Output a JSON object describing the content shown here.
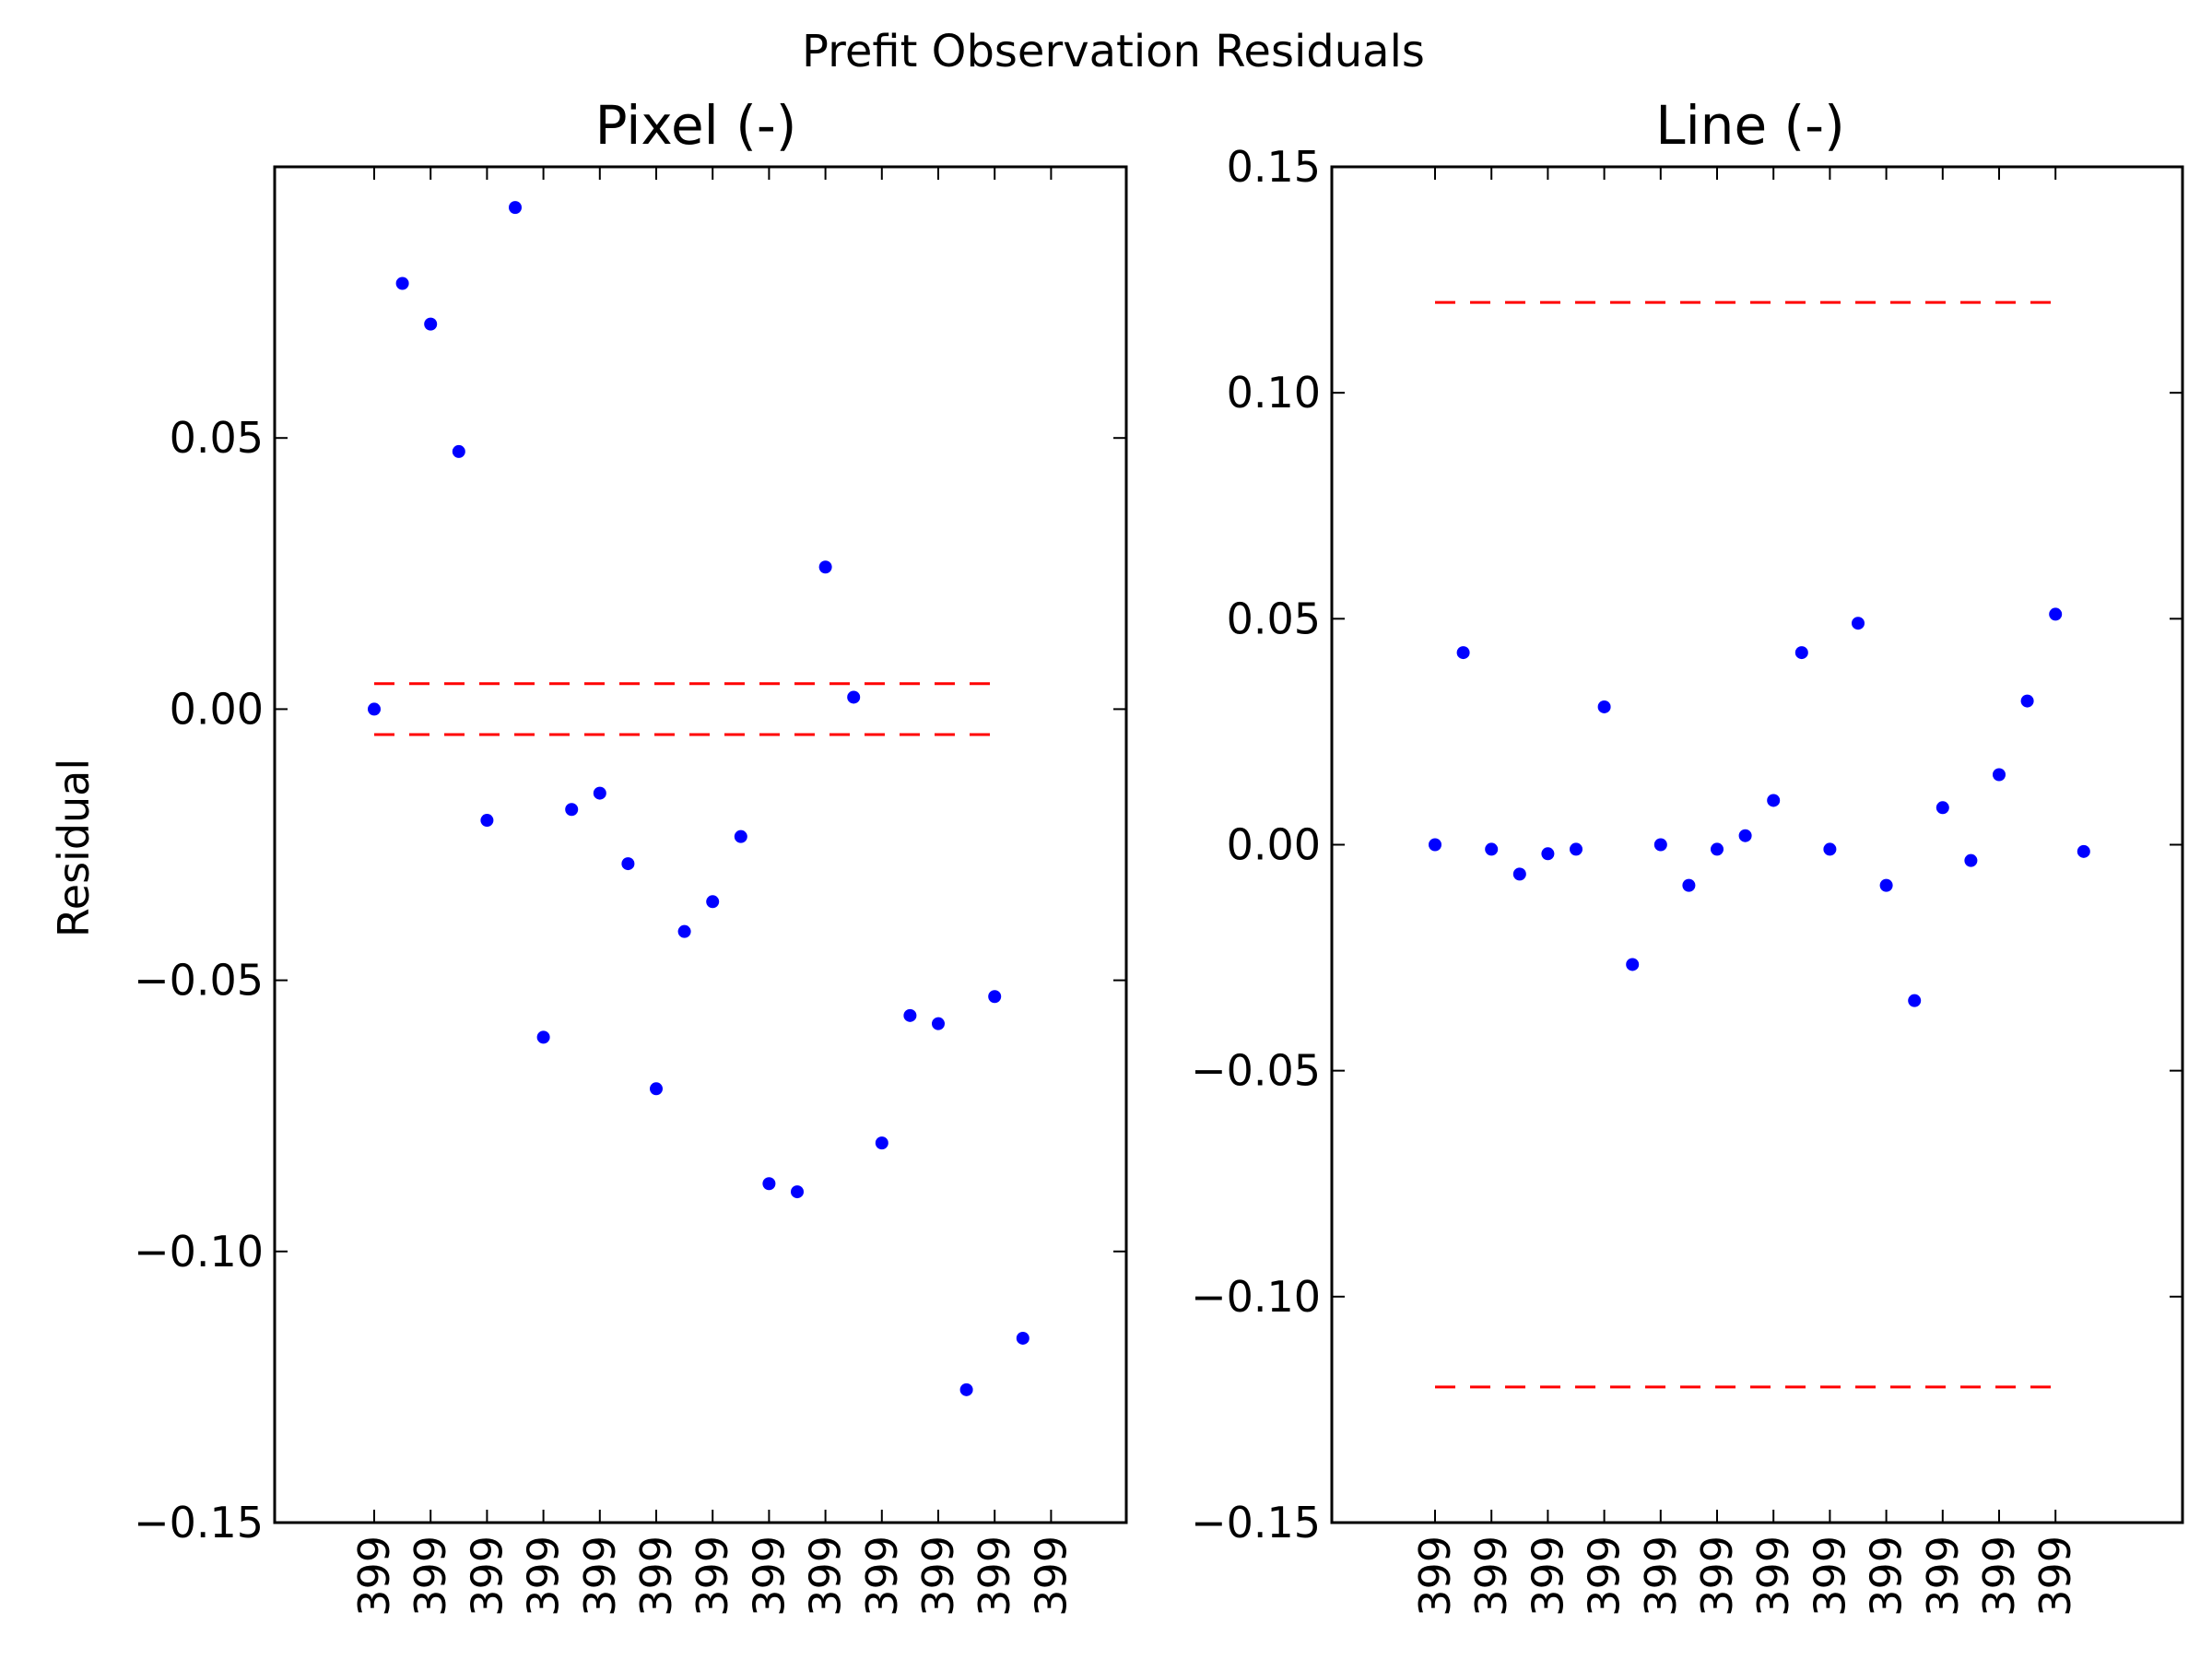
{
  "figure": {
    "suptitle": "Prefit Observation Residuals",
    "ylabel": "Residual"
  },
  "colors": {
    "points": "#0000ff",
    "limits": "#ff0000",
    "axes": "#000000",
    "background": "#ffffff"
  },
  "chart_data": [
    {
      "type": "scatter",
      "title": "Pixel (-)",
      "ylabel": "Residual",
      "ylim": [
        -0.15,
        0.1
      ],
      "yticks": [
        0.05,
        0.0,
        -0.05,
        -0.1,
        -0.15
      ],
      "ytick_labels": [
        "0.05",
        "0.00",
        "−0.05",
        "−0.10",
        "−0.15"
      ],
      "grid": false,
      "x_tick_labels": [
        "399",
        "399",
        "399",
        "399",
        "399",
        "399",
        "399",
        "399",
        "399",
        "399",
        "399",
        "399",
        "399"
      ],
      "limit_lines": [
        0.0047,
        -0.0047
      ],
      "series": [
        {
          "values": [
            0.0,
            0.0785,
            0.071,
            0.0475,
            -0.0205,
            0.0925,
            -0.0605,
            -0.0185,
            -0.0155,
            -0.0285,
            -0.07,
            -0.041,
            -0.0355,
            -0.0235,
            -0.0875,
            -0.089,
            0.0262,
            0.0022,
            -0.08,
            -0.0565,
            -0.058,
            -0.1255,
            -0.053,
            -0.116
          ]
        }
      ]
    },
    {
      "type": "scatter",
      "title": "Line (-)",
      "ylim": [
        -0.15,
        0.15
      ],
      "yticks": [
        0.15,
        0.1,
        0.05,
        0.0,
        -0.05,
        -0.1,
        -0.15
      ],
      "ytick_labels": [
        "0.15",
        "0.10",
        "0.05",
        "0.00",
        "−0.05",
        "−0.10",
        "−0.15"
      ],
      "grid": false,
      "x_tick_labels": [
        "399",
        "399",
        "399",
        "399",
        "399",
        "399",
        "399",
        "399",
        "399",
        "399",
        "399",
        "399"
      ],
      "limit_lines": [
        0.12,
        -0.12
      ],
      "series": [
        {
          "values": [
            0.0,
            0.0425,
            -0.001,
            -0.0065,
            -0.002,
            -0.001,
            0.0305,
            -0.0265,
            0.0,
            -0.009,
            -0.001,
            0.002,
            0.0098,
            0.0425,
            -0.001,
            0.049,
            -0.009,
            -0.0345,
            0.0082,
            -0.0035,
            0.0155,
            0.0318,
            0.051,
            -0.0015
          ]
        }
      ]
    }
  ]
}
